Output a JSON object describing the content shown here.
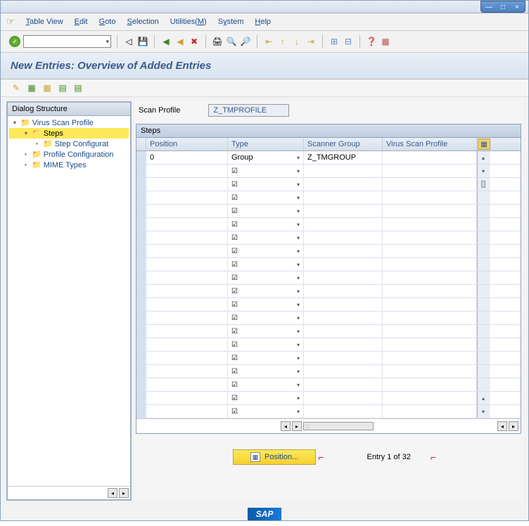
{
  "menu": {
    "table_view": "Table View",
    "edit": "Edit",
    "goto": "Goto",
    "selection": "Selection",
    "utilities": "Utilities(M)",
    "system": "System",
    "help": "Help"
  },
  "page_title": "New Entries: Overview of Added Entries",
  "tree": {
    "header": "Dialog Structure",
    "items": [
      {
        "label": "Virus Scan Profile",
        "indent": 0,
        "open": true
      },
      {
        "label": "Steps",
        "indent": 1,
        "open": true,
        "selected": true
      },
      {
        "label": "Step Configurat",
        "indent": 2,
        "dot": true
      },
      {
        "label": "Profile Configuration",
        "indent": 1,
        "dot": true
      },
      {
        "label": "MIME Types",
        "indent": 1,
        "dot": true
      }
    ]
  },
  "profile": {
    "label": "Scan Profile",
    "value": "Z_TMPROFILE"
  },
  "table": {
    "title": "Steps",
    "columns": {
      "position": "Position",
      "type": "Type",
      "scanner_group": "Scanner Group",
      "virus_scan_profile": "Virus Scan Profile"
    },
    "rows": [
      {
        "position": "0",
        "type": "Group",
        "scanner_group": "Z_TMGROUP",
        "has_check": false
      },
      {
        "has_check": true
      },
      {
        "has_check": true
      },
      {
        "has_check": true
      },
      {
        "has_check": true
      },
      {
        "has_check": true
      },
      {
        "has_check": true
      },
      {
        "has_check": true
      },
      {
        "has_check": true
      },
      {
        "has_check": true
      },
      {
        "has_check": true
      },
      {
        "has_check": true
      },
      {
        "has_check": true
      },
      {
        "has_check": true
      },
      {
        "has_check": true
      },
      {
        "has_check": true
      },
      {
        "has_check": true
      },
      {
        "has_check": true
      },
      {
        "has_check": true
      },
      {
        "has_check": true
      }
    ]
  },
  "footer": {
    "position_btn": "Position...",
    "entry_text": "Entry 1 of 32"
  },
  "logo": "SAP"
}
